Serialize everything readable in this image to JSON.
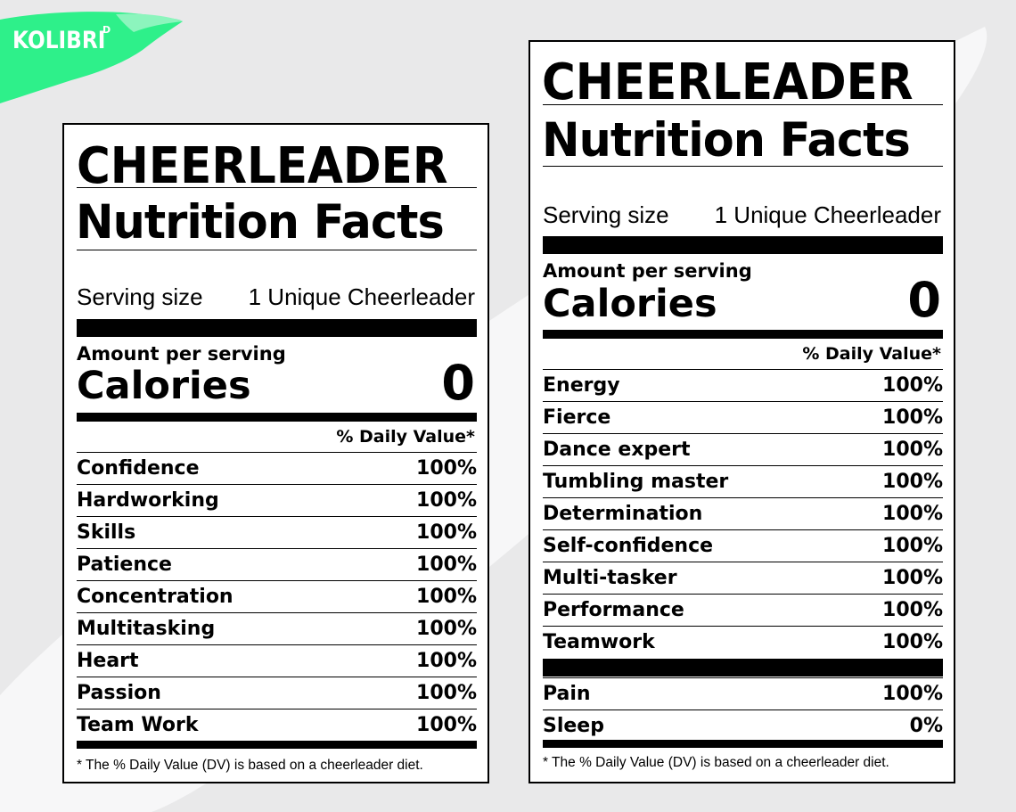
{
  "brand": {
    "logo_text": "KOLIBRI",
    "logo_sup": "D",
    "accent_color": "#2ef08a"
  },
  "labels": [
    {
      "title_line1": "CHEERLEADER",
      "title_line2": "Nutrition Facts",
      "serving_label": "Serving size",
      "serving_value": "1 Unique Cheerleader",
      "amount_per_serving": "Amount per serving",
      "calories_label": "Calories",
      "calories_value": "0",
      "daily_value_header": "% Daily Value*",
      "nutrients": [
        {
          "name": "Confidence",
          "value": "100%"
        },
        {
          "name": "Hardworking",
          "value": "100%"
        },
        {
          "name": "Skills",
          "value": "100%"
        },
        {
          "name": "Patience",
          "value": "100%"
        },
        {
          "name": "Concentration",
          "value": "100%"
        },
        {
          "name": "Multitasking",
          "value": "100%"
        },
        {
          "name": "Heart",
          "value": "100%"
        },
        {
          "name": "Passion",
          "value": "100%"
        },
        {
          "name": "Team Work",
          "value": "100%"
        }
      ],
      "footnote": "* The % Daily Value (DV) is based on a cheerleader diet."
    },
    {
      "title_line1": "CHEERLEADER",
      "title_line2": "Nutrition Facts",
      "serving_label": "Serving size",
      "serving_value": "1 Unique Cheerleader",
      "amount_per_serving": "Amount per serving",
      "calories_label": "Calories",
      "calories_value": "0",
      "daily_value_header": "% Daily Value*",
      "nutrients": [
        {
          "name": "Energy",
          "value": "100%"
        },
        {
          "name": "Fierce",
          "value": "100%"
        },
        {
          "name": "Dance expert",
          "value": "100%"
        },
        {
          "name": "Tumbling master",
          "value": "100%"
        },
        {
          "name": "Determination",
          "value": "100%"
        },
        {
          "name": "Self-confidence",
          "value": "100%"
        },
        {
          "name": "Multi-tasker",
          "value": "100%"
        },
        {
          "name": "Performance",
          "value": "100%"
        },
        {
          "name": "Teamwork",
          "value": "100%"
        }
      ],
      "extra_nutrients": [
        {
          "name": "Pain",
          "value": "100%"
        },
        {
          "name": "Sleep",
          "value": "0%"
        }
      ],
      "footnote": "* The % Daily Value (DV) is based on a cheerleader diet."
    }
  ]
}
